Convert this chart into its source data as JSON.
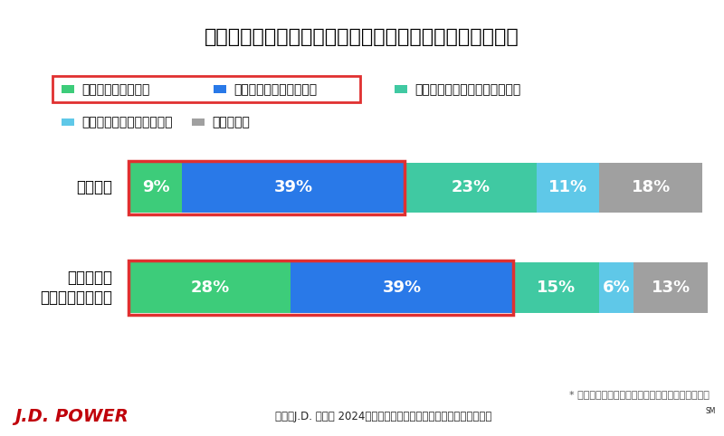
{
  "title": "カーシェア利用者における、国内のライドシェア利用意向",
  "categories": [
    "調査全体",
    "海外ライドシェア\n利用経験者"
  ],
  "segments": [
    {
      "label": "積極的に利用したい",
      "color": "#3dcc7a",
      "values": [
        9,
        28
      ]
    },
    {
      "label": "機会があれば利用したい",
      "color": "#2979e8",
      "values": [
        39,
        39
      ]
    },
    {
      "label": "あまり利用したいとは思わない",
      "color": "#40c9a2",
      "values": [
        23,
        15
      ]
    },
    {
      "label": "全く利用するつもりはない",
      "color": "#5fc8e8",
      "values": [
        11,
        6
      ]
    },
    {
      "label": "わからない",
      "color": "#a0a0a0",
      "values": [
        18,
        13
      ]
    }
  ],
  "highlight_segments": [
    0,
    1
  ],
  "highlight_color": "#e03030",
  "note": "* 数値について、小数点以下は四捨五入しています",
  "source": "出典：J.D. パワー 2024年カーシェアリングサービス顧客満足度調査",
  "source_sm": "SM",
  "jdpower_text": "J.D. POWER",
  "jdpower_color": "#c0000a",
  "bg_color": "#ffffff",
  "title_fontsize": 16,
  "label_fontsize": 12,
  "pct_fontsize": 13,
  "legend_fontsize": 10,
  "note_fontsize": 8,
  "source_fontsize": 8.5,
  "jdpower_fontsize": 14
}
